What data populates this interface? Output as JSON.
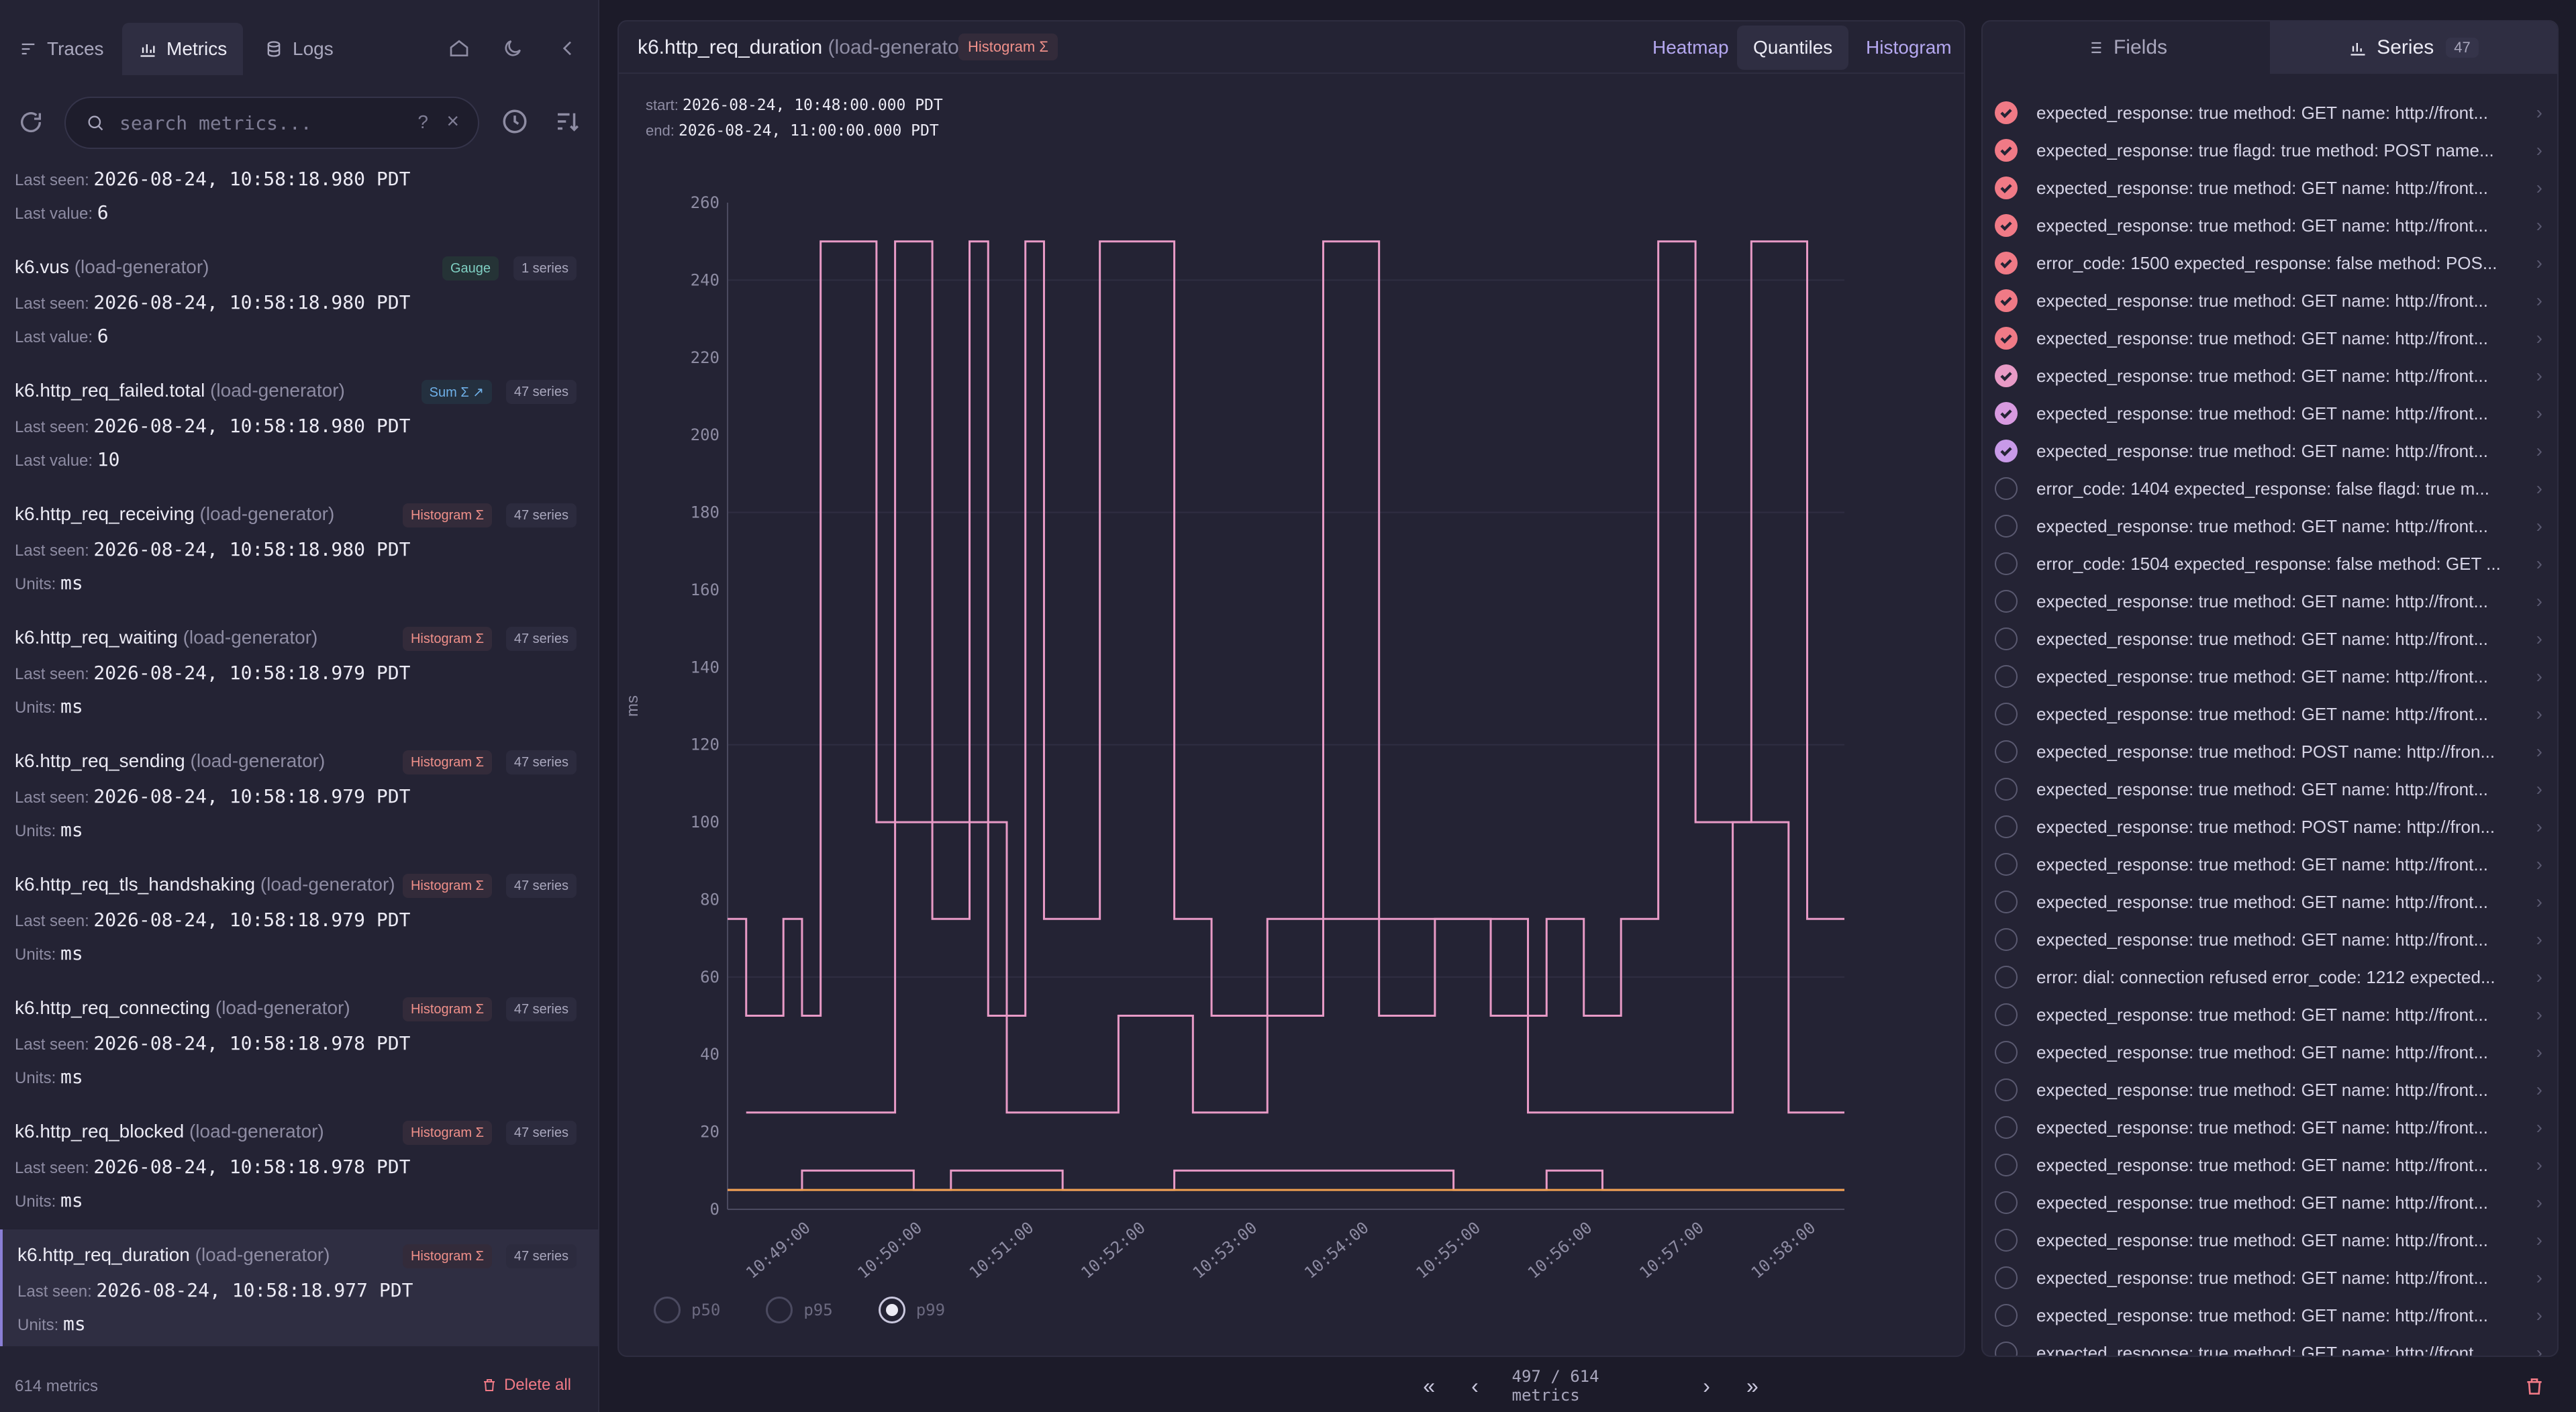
{
  "nav": {
    "tabs": [
      {
        "label": "Traces",
        "icon": "traces-icon"
      },
      {
        "label": "Metrics",
        "icon": "metrics-icon"
      },
      {
        "label": "Logs",
        "icon": "logs-icon"
      }
    ]
  },
  "search": {
    "placeholder": "search metrics...",
    "value": "",
    "help": "?",
    "clear": "×"
  },
  "metrics": [
    {
      "name": "",
      "service": "",
      "badge": "",
      "badge_kind": "",
      "series": "",
      "line1_label": "Last seen:",
      "line1_value": "2026-08-24, 10:58:18.980 PDT",
      "line2_label": "Last value:",
      "line2_value": "6"
    },
    {
      "name": "k6.vus",
      "service": "(load-generator)",
      "badge": "Gauge",
      "badge_kind": "gauge",
      "series": "1 series",
      "line1_label": "Last seen:",
      "line1_value": "2026-08-24, 10:58:18.980 PDT",
      "line2_label": "Last value:",
      "line2_value": "6"
    },
    {
      "name": "k6.http_req_failed.total",
      "service": "(load-generator)",
      "badge": "Sum Σ ↗",
      "badge_kind": "sum",
      "series": "47 series",
      "line1_label": "Last seen:",
      "line1_value": "2026-08-24, 10:58:18.980 PDT",
      "line2_label": "Last value:",
      "line2_value": "10"
    },
    {
      "name": "k6.http_req_receiving",
      "service": "(load-generator)",
      "badge": "Histogram Σ",
      "badge_kind": "hist",
      "series": "47 series",
      "line1_label": "Last seen:",
      "line1_value": "2026-08-24, 10:58:18.980 PDT",
      "line2_label": "Units:",
      "line2_value": "ms"
    },
    {
      "name": "k6.http_req_waiting",
      "service": "(load-generator)",
      "badge": "Histogram Σ",
      "badge_kind": "hist",
      "series": "47 series",
      "line1_label": "Last seen:",
      "line1_value": "2026-08-24, 10:58:18.979 PDT",
      "line2_label": "Units:",
      "line2_value": "ms"
    },
    {
      "name": "k6.http_req_sending",
      "service": "(load-generator)",
      "badge": "Histogram Σ",
      "badge_kind": "hist",
      "series": "47 series",
      "line1_label": "Last seen:",
      "line1_value": "2026-08-24, 10:58:18.979 PDT",
      "line2_label": "Units:",
      "line2_value": "ms"
    },
    {
      "name": "k6.http_req_tls_handshaking",
      "service": "(load-generator)",
      "badge": "Histogram Σ",
      "badge_kind": "hist",
      "series": "47 series",
      "line1_label": "Last seen:",
      "line1_value": "2026-08-24, 10:58:18.979 PDT",
      "line2_label": "Units:",
      "line2_value": "ms"
    },
    {
      "name": "k6.http_req_connecting",
      "service": "(load-generator)",
      "badge": "Histogram Σ",
      "badge_kind": "hist",
      "series": "47 series",
      "line1_label": "Last seen:",
      "line1_value": "2026-08-24, 10:58:18.978 PDT",
      "line2_label": "Units:",
      "line2_value": "ms"
    },
    {
      "name": "k6.http_req_blocked",
      "service": "(load-generator)",
      "badge": "Histogram Σ",
      "badge_kind": "hist",
      "series": "47 series",
      "line1_label": "Last seen:",
      "line1_value": "2026-08-24, 10:58:18.978 PDT",
      "line2_label": "Units:",
      "line2_value": "ms"
    },
    {
      "name": "k6.http_req_duration",
      "service": "(load-generator)",
      "badge": "Histogram Σ",
      "badge_kind": "hist",
      "series": "47 series",
      "line1_label": "Last seen:",
      "line1_value": "2026-08-24, 10:58:18.977 PDT",
      "line2_label": "Units:",
      "line2_value": "ms",
      "selected": true
    }
  ],
  "footer": {
    "count": "614 metrics",
    "delete_all": "Delete all"
  },
  "chart_panel": {
    "title": "k6.http_req_duration",
    "service": "(load-generator)",
    "type_badge": "Histogram Σ",
    "view_tabs": [
      "Heatmap",
      "Quantiles",
      "Histogram"
    ],
    "active_view": "Quantiles",
    "start_label": "start:",
    "start_value": "2026-08-24, 10:48:00.000 PDT",
    "end_label": "end:",
    "end_value": "2026-08-24, 11:00:00.000 PDT",
    "quantiles": [
      {
        "label": "p50",
        "selected": false
      },
      {
        "label": "p95",
        "selected": false
      },
      {
        "label": "p99",
        "selected": true
      }
    ]
  },
  "chart_data": {
    "type": "line",
    "ylabel": "ms",
    "ylim": [
      0,
      260
    ],
    "yticks": [
      0,
      20,
      40,
      60,
      80,
      100,
      120,
      140,
      160,
      180,
      200,
      220,
      240,
      260
    ],
    "xlim": [
      0,
      600
    ],
    "xticks": [
      "10:49:00",
      "10:50:00",
      "10:51:00",
      "10:52:00",
      "10:53:00",
      "10:54:00",
      "10:55:00",
      "10:56:00",
      "10:57:00",
      "10:58:00"
    ],
    "xtick_positions": [
      45,
      105,
      165,
      225,
      285,
      345,
      405,
      465,
      525,
      585
    ],
    "grid": true,
    "series_color": "#e89ac6",
    "series": [
      {
        "x": [
          0,
          10,
          10,
          30,
          30,
          40,
          40,
          50,
          50,
          80,
          80,
          90,
          90,
          110,
          110,
          130,
          130,
          140,
          140,
          160,
          160,
          170,
          170,
          200,
          200,
          240,
          240,
          260,
          260,
          290,
          290,
          320,
          320,
          350,
          350,
          380,
          380,
          410,
          410,
          440,
          440,
          460,
          460,
          480,
          480,
          500,
          500,
          520,
          520,
          550,
          550,
          580,
          580,
          600
        ],
        "y": [
          75,
          75,
          50,
          50,
          75,
          75,
          50,
          50,
          250,
          250,
          100,
          100,
          250,
          250,
          75,
          75,
          250,
          250,
          50,
          50,
          250,
          250,
          75,
          75,
          250,
          250,
          75,
          75,
          50,
          50,
          75,
          75,
          250,
          250,
          50,
          50,
          75,
          75,
          50,
          50,
          75,
          75,
          50,
          50,
          75,
          75,
          250,
          250,
          100,
          100,
          250,
          250,
          75,
          75
        ]
      },
      {
        "x": [
          10,
          90,
          90,
          150,
          150,
          210,
          210,
          250,
          250,
          290,
          290,
          320,
          320,
          430,
          430,
          540,
          540,
          570,
          570,
          600
        ],
        "y": [
          25,
          25,
          100,
          100,
          25,
          25,
          50,
          50,
          25,
          25,
          50,
          50,
          75,
          75,
          25,
          25,
          100,
          100,
          25,
          25
        ]
      },
      {
        "x": [
          0,
          40,
          40,
          100,
          100,
          120,
          120,
          180,
          180,
          240,
          240,
          390,
          390,
          440,
          440,
          470,
          470,
          600
        ],
        "y": [
          5,
          5,
          10,
          10,
          5,
          5,
          10,
          10,
          5,
          5,
          10,
          10,
          5,
          5,
          10,
          10,
          5,
          5
        ]
      },
      {
        "x": [
          0,
          600
        ],
        "y": [
          5,
          5
        ]
      }
    ]
  },
  "pagination": {
    "info": "497 / 614 metrics"
  },
  "series_panel": {
    "tabs": [
      {
        "label": "Fields"
      },
      {
        "label": "Series"
      }
    ],
    "active_tab": "Series",
    "count": "47",
    "rows": [
      {
        "label": "expected_response: true method: GET name: http://front...",
        "checked": true,
        "color": "#f07a86"
      },
      {
        "label": "expected_response: true flagd: true method: POST name...",
        "checked": true,
        "color": "#f07a86"
      },
      {
        "label": "expected_response: true method: GET name: http://front...",
        "checked": true,
        "color": "#f07a86"
      },
      {
        "label": "expected_response: true method: GET name: http://front...",
        "checked": true,
        "color": "#f07a86"
      },
      {
        "label": "error_code: 1500 expected_response: false method: POS...",
        "checked": true,
        "color": "#f07a86"
      },
      {
        "label": "expected_response: true method: GET name: http://front...",
        "checked": true,
        "color": "#f07a86"
      },
      {
        "label": "expected_response: true method: GET name: http://front...",
        "checked": true,
        "color": "#f07a86"
      },
      {
        "label": "expected_response: true method: GET name: http://front...",
        "checked": true,
        "color": "#e89ac6"
      },
      {
        "label": "expected_response: true method: GET name: http://front...",
        "checked": true,
        "color": "#d89ae0"
      },
      {
        "label": "expected_response: true method: GET name: http://front...",
        "checked": true,
        "color": "#c89ae8"
      },
      {
        "label": "error_code: 1404 expected_response: false flagd: true m...",
        "checked": false
      },
      {
        "label": "expected_response: true method: GET name: http://front...",
        "checked": false
      },
      {
        "label": "error_code: 1504 expected_response: false method: GET ...",
        "checked": false
      },
      {
        "label": "expected_response: true method: GET name: http://front...",
        "checked": false
      },
      {
        "label": "expected_response: true method: GET name: http://front...",
        "checked": false
      },
      {
        "label": "expected_response: true method: GET name: http://front...",
        "checked": false
      },
      {
        "label": "expected_response: true method: GET name: http://front...",
        "checked": false
      },
      {
        "label": "expected_response: true method: POST name: http://fron...",
        "checked": false
      },
      {
        "label": "expected_response: true method: GET name: http://front...",
        "checked": false
      },
      {
        "label": "expected_response: true method: POST name: http://fron...",
        "checked": false
      },
      {
        "label": "expected_response: true method: GET name: http://front...",
        "checked": false
      },
      {
        "label": "expected_response: true method: GET name: http://front...",
        "checked": false
      },
      {
        "label": "expected_response: true method: GET name: http://front...",
        "checked": false
      },
      {
        "label": "error: dial: connection refused error_code: 1212 expected...",
        "checked": false
      },
      {
        "label": "expected_response: true method: GET name: http://front...",
        "checked": false
      },
      {
        "label": "expected_response: true method: GET name: http://front...",
        "checked": false
      },
      {
        "label": "expected_response: true method: GET name: http://front...",
        "checked": false
      },
      {
        "label": "expected_response: true method: GET name: http://front...",
        "checked": false
      },
      {
        "label": "expected_response: true method: GET name: http://front...",
        "checked": false
      },
      {
        "label": "expected_response: true method: GET name: http://front...",
        "checked": false
      },
      {
        "label": "expected_response: true method: GET name: http://front...",
        "checked": false
      },
      {
        "label": "expected_response: true method: GET name: http://front...",
        "checked": false
      },
      {
        "label": "expected_response: true method: GET name: http://front...",
        "checked": false
      },
      {
        "label": "expected_response: true method: GET name: http://front...",
        "checked": false
      }
    ]
  }
}
